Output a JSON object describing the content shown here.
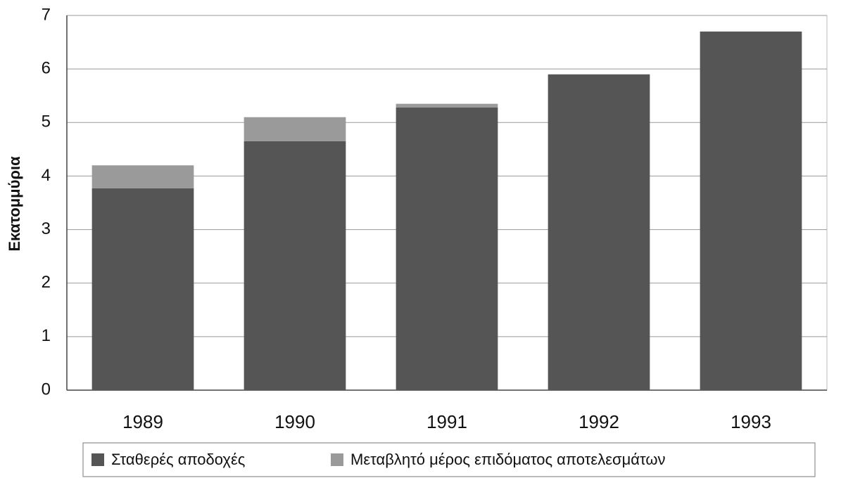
{
  "chart_data": {
    "type": "stacked_bar",
    "y_label": "Εκατομμύρια",
    "categories": [
      "1989",
      "1990",
      "1991",
      "1992",
      "1993"
    ],
    "series": [
      {
        "name": "Σταθερές αποδοχές",
        "color": "#555555",
        "values": [
          3.77,
          4.65,
          5.28,
          5.9,
          6.7
        ]
      },
      {
        "name": "Μεταβλητό μέρος επιδόματος αποτελεσμάτων",
        "color": "#9a9a9a",
        "values": [
          0.43,
          0.45,
          0.07,
          0,
          0
        ]
      }
    ],
    "ylim": [
      0,
      7
    ],
    "yticks": [
      0,
      1,
      2,
      3,
      4,
      5,
      6,
      7
    ],
    "grid": true,
    "legend": "bottom"
  }
}
